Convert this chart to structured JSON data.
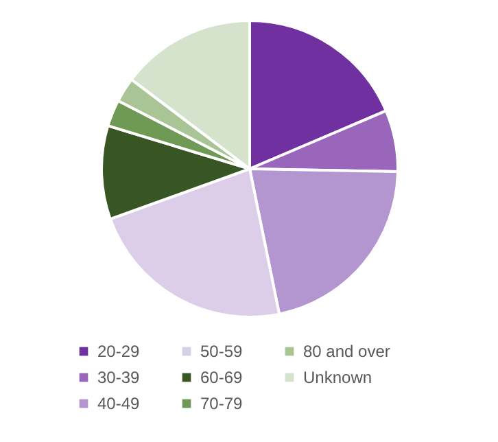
{
  "chart_data": {
    "type": "pie",
    "categories": [
      "20-29",
      "30-39",
      "40-49",
      "50-59",
      "60-69",
      "70-79",
      "80 and over",
      "Unknown"
    ],
    "values": [
      18.6,
      6.7,
      21.5,
      22.7,
      10.2,
      2.9,
      2.7,
      14.7
    ],
    "colors": [
      "#7030a0",
      "#9966bb",
      "#b395cf",
      "#dccde9",
      "#375623",
      "#6f9a55",
      "#a9c596",
      "#d6e3cc"
    ],
    "legend": "bottom"
  }
}
